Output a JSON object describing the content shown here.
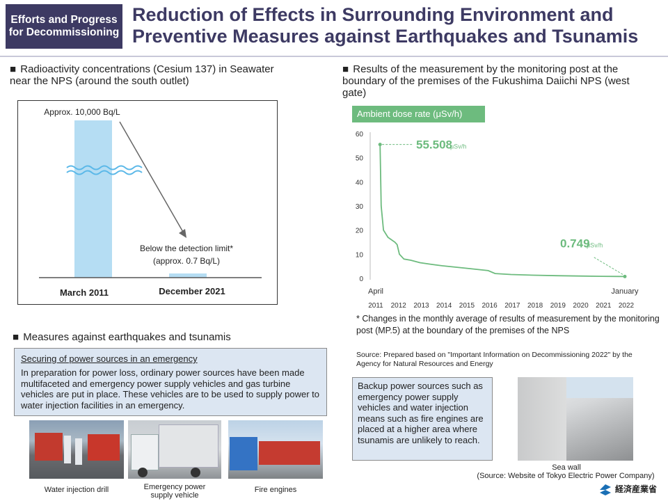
{
  "header": {
    "badge": "Efforts and Progress for Decommissioning",
    "title": "Reduction of Effects in Surrounding Environment and Preventive Measures against Earthquakes and Tsunamis"
  },
  "left_chart": {
    "heading": "Radioactivity concentrations (Cesium 137) in Seawater near the NPS (around the south outlet)",
    "bar1_label": "Approx. 10,000 Bq/L",
    "bar2_label_line1": "Below the detection limit*",
    "bar2_label_line2": "(approx. 0.7 Bq/L)",
    "x1": "March 2011",
    "x2": "December 2021"
  },
  "measures": {
    "heading": "Measures against earthquakes and tsunamis",
    "box_title": "Securing of power sources in an emergency",
    "box_text": "In preparation for power loss, ordinary power sources have been made multifaceted and emergency power supply vehicles and gas turbine vehicles are put in place. These vehicles are to be used to supply power to water injection facilities in an emergency.",
    "photo1": "Water injection drill",
    "photo2": "Emergency power supply vehicle",
    "photo3": "Fire engines"
  },
  "right": {
    "heading": "Results of the measurement by the monitoring post at the boundary of the premises of the Fukushima Daiichi NPS (west gate)",
    "chart_label": "Ambient dose rate (μSv/h)",
    "note": "* Changes in the monthly average of results of measurement by the monitoring post (MP.5) at the boundary of the premises of the NPS",
    "source": "Source: Prepared based on \"Important Information on Decommissioning 2022\" by the Agency for Natural Resources and Energy",
    "backup_text": "Backup power sources such as emergency power supply vehicles and water injection means such as fire engines are placed at a higher area where tsunamis are unlikely to reach.",
    "seawall": "Sea wall",
    "seawall_source": "(Source: Website of Tokyo Electric Power Company)",
    "logo_text": "経済産業省"
  },
  "chart_data": {
    "type": "line",
    "y_ticks": [
      "0",
      "10",
      "20",
      "30",
      "40",
      "50",
      "60"
    ],
    "ylim": [
      0,
      60
    ],
    "x_ticks": [
      "2011",
      "2012",
      "2013",
      "2014",
      "2015",
      "2016",
      "2017",
      "2018",
      "2019",
      "2020",
      "2021",
      "2022"
    ],
    "x_start_label": "April",
    "x_end_label": "January",
    "start_value_num": "55.508",
    "end_value_num": "0.749",
    "unit": "μSv/h",
    "series": [
      {
        "values": [
          {
            "x": 2011.25,
            "y": 55.5
          },
          {
            "x": 2011.3,
            "y": 30
          },
          {
            "x": 2011.4,
            "y": 20
          },
          {
            "x": 2011.6,
            "y": 17
          },
          {
            "x": 2011.9,
            "y": 15
          },
          {
            "x": 2012.0,
            "y": 14
          },
          {
            "x": 2012.1,
            "y": 10
          },
          {
            "x": 2012.3,
            "y": 8
          },
          {
            "x": 2012.6,
            "y": 7.5
          },
          {
            "x": 2013.0,
            "y": 6.5
          },
          {
            "x": 2013.5,
            "y": 5.8
          },
          {
            "x": 2014.0,
            "y": 5.2
          },
          {
            "x": 2015.0,
            "y": 4.2
          },
          {
            "x": 2016.0,
            "y": 3.2
          },
          {
            "x": 2016.3,
            "y": 2
          },
          {
            "x": 2017.0,
            "y": 1.6
          },
          {
            "x": 2018.0,
            "y": 1.3
          },
          {
            "x": 2019.0,
            "y": 1.1
          },
          {
            "x": 2020.0,
            "y": 0.95
          },
          {
            "x": 2021.0,
            "y": 0.85
          },
          {
            "x": 2022.0,
            "y": 0.749
          }
        ]
      }
    ],
    "color": "#6dbb7e"
  }
}
